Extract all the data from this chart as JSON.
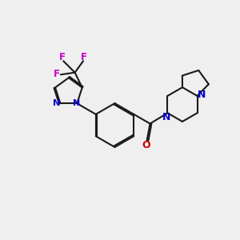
{
  "background_color": "#efefef",
  "bond_color": "#1a1a1a",
  "nitrogen_color": "#0000cc",
  "oxygen_color": "#cc0000",
  "fluorine_color": "#cc00cc",
  "lw": 1.5,
  "figsize": [
    3.0,
    3.0
  ],
  "dpi": 100,
  "xlim": [
    -5.5,
    6.0
  ],
  "ylim": [
    -4.0,
    4.5
  ]
}
